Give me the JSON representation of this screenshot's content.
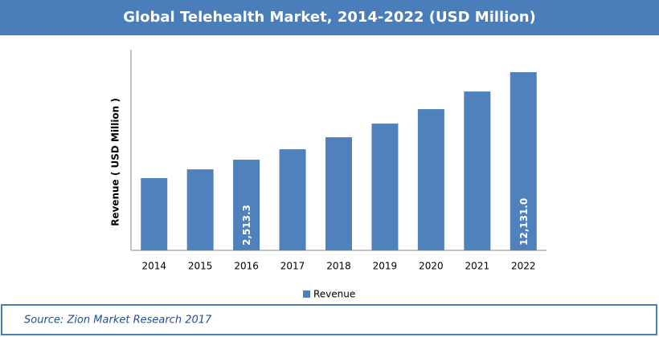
{
  "chart_data": {
    "type": "bar",
    "title": "Global Telehealth Market, 2014-2022 (USD Million)",
    "y_label": "Revenue ( USD Million )",
    "source": "Source: Zion Market Research 2017",
    "categories": [
      "2014",
      "2015",
      "2016",
      "2017",
      "2018",
      "2019",
      "2020",
      "2021",
      "2022"
    ],
    "series": [
      {
        "name": "Revenue",
        "color": "#4f81bd",
        "values": [
          484,
          1454,
          2513.3,
          3659,
          4982,
          6482,
          8069,
          10010,
          12131.0
        ],
        "value_labels": [
          null,
          null,
          "2,513.3",
          null,
          null,
          null,
          null,
          null,
          "12,131.0"
        ]
      }
    ],
    "ylim": [
      -7450,
      14600
    ],
    "legend": "bottom"
  }
}
